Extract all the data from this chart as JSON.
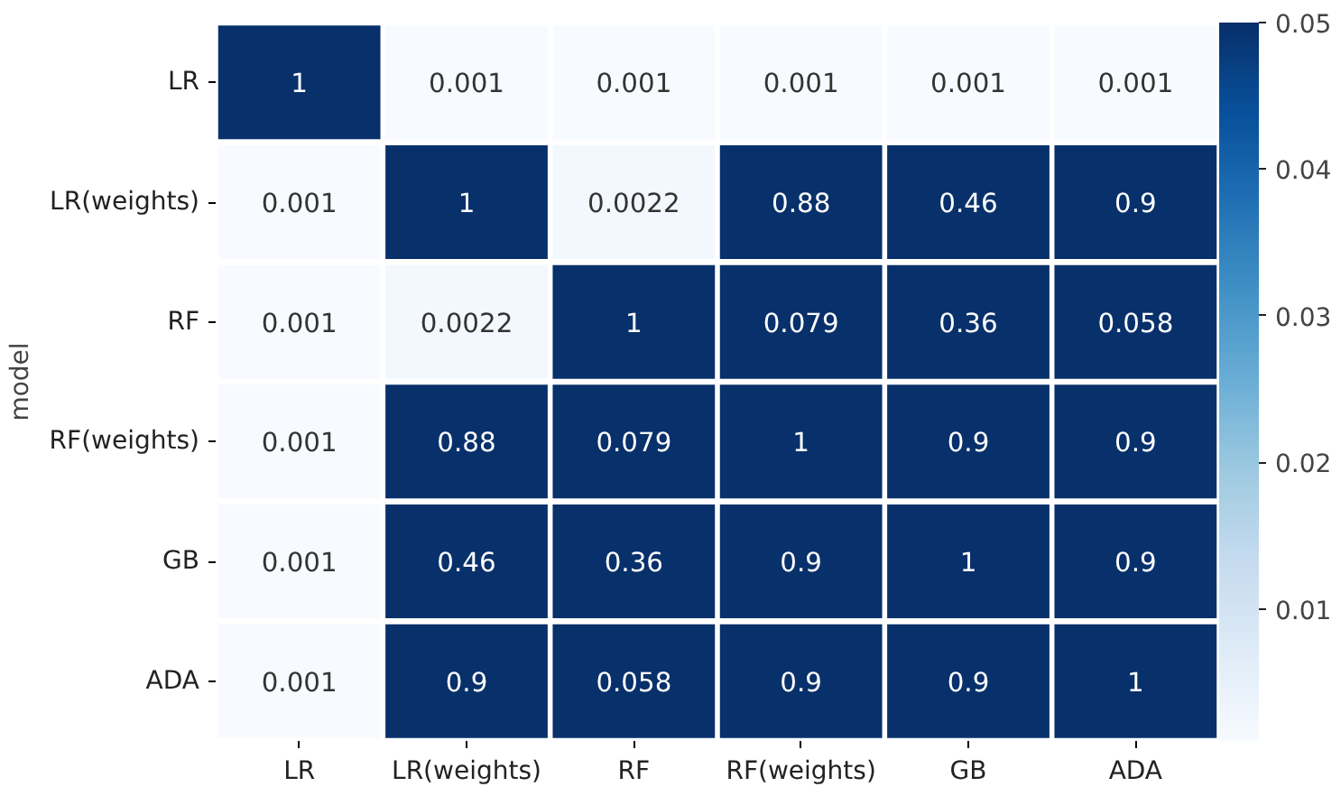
{
  "chart_data": {
    "type": "heatmap",
    "ylabel": "model",
    "categories": [
      "LR",
      "LR(weights)",
      "RF",
      "RF(weights)",
      "GB",
      "ADA"
    ],
    "y_categories": [
      "LR",
      "LR(weights)",
      "RF",
      "RF(weights)",
      "GB",
      "ADA"
    ],
    "cells": [
      [
        1,
        0.001,
        0.001,
        0.001,
        0.001,
        0.001
      ],
      [
        0.001,
        1,
        0.0022,
        0.88,
        0.46,
        0.9
      ],
      [
        0.001,
        0.0022,
        1,
        0.079,
        0.36,
        0.058
      ],
      [
        0.001,
        0.88,
        0.079,
        1,
        0.9,
        0.9
      ],
      [
        0.001,
        0.46,
        0.36,
        0.9,
        1,
        0.9
      ],
      [
        0.001,
        0.9,
        0.058,
        0.9,
        0.9,
        1
      ]
    ],
    "clim": [
      0.001,
      0.05
    ],
    "cticks": [
      0.01,
      0.02,
      0.03,
      0.04,
      0.05
    ],
    "data_labels": true
  }
}
